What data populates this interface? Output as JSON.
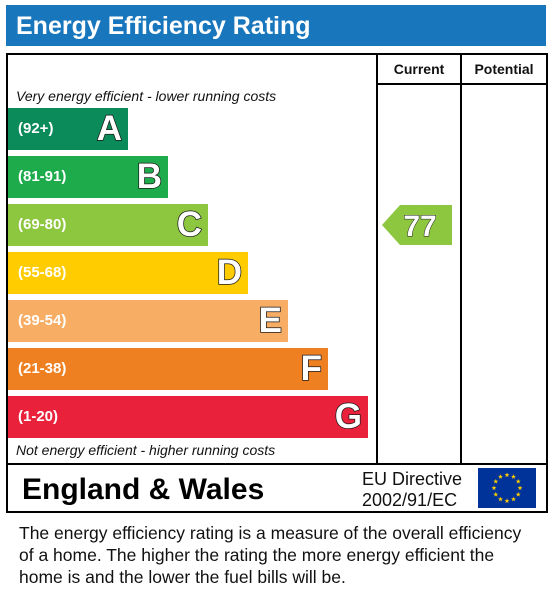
{
  "title": "Energy Efficiency Rating",
  "headers": {
    "current": "Current",
    "potential": "Potential"
  },
  "captions": {
    "top": "Very energy efficient - lower running costs",
    "bottom": "Not energy efficient - higher running costs"
  },
  "chart_data": {
    "type": "bar",
    "title": "Energy Efficiency Rating",
    "categories": [
      "A",
      "B",
      "C",
      "D",
      "E",
      "F",
      "G"
    ],
    "ranges": [
      "(92+)",
      "(81-91)",
      "(69-80)",
      "(55-68)",
      "(39-54)",
      "(21-38)",
      "(1-20)"
    ],
    "colors": [
      "#0b8a5a",
      "#1eab4c",
      "#8dc63f",
      "#ffcc00",
      "#f7ad63",
      "#ef8022",
      "#e9213a"
    ],
    "current": {
      "value": 77,
      "band": "C",
      "color": "#8dc63f"
    },
    "potential": null
  },
  "footer": {
    "region": "England & Wales",
    "directive_line1": "EU Directive",
    "directive_line2": "2002/91/EC"
  },
  "description": "The energy efficiency rating is a measure of the overall efficiency of a home.  The higher the rating the more energy efficient the home is and the lower the fuel bills will be."
}
